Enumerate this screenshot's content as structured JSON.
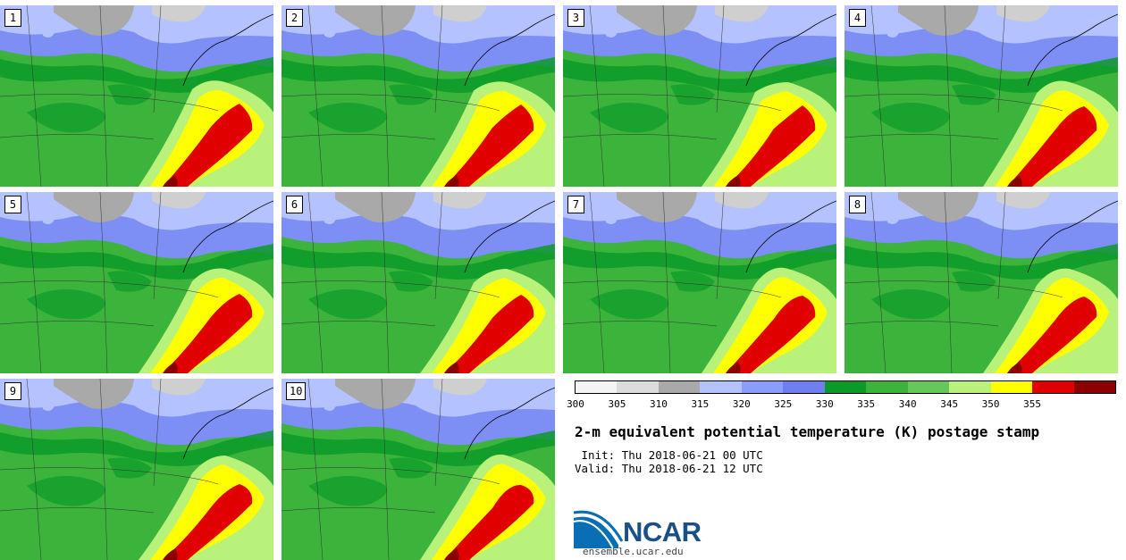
{
  "panels": [
    {
      "member": "1"
    },
    {
      "member": "2"
    },
    {
      "member": "3"
    },
    {
      "member": "4"
    },
    {
      "member": "5"
    },
    {
      "member": "6"
    },
    {
      "member": "7"
    },
    {
      "member": "8"
    },
    {
      "member": "9"
    },
    {
      "member": "10"
    }
  ],
  "colorbar": {
    "ticks": [
      "300",
      "305",
      "310",
      "315",
      "320",
      "325",
      "330",
      "335",
      "340",
      "345",
      "350",
      "355"
    ],
    "colors": [
      "#f4f4f4",
      "#dcdcdc",
      "#a9a9a9",
      "#b4c3ff",
      "#8a9dfa",
      "#6f7ff0",
      "#0b9a28",
      "#3cb43c",
      "#66c85a",
      "#b8f27a",
      "#ffff00",
      "#e10000",
      "#8b0000"
    ]
  },
  "title": "2-m equivalent potential temperature (K) postage stamp",
  "init_line": " Init: Thu 2018-06-21 00 UTC",
  "valid_line": "Valid: Thu 2018-06-21 12 UTC",
  "logo_text": "NCAR",
  "site": "ensemble.ucar.edu",
  "map_colors": {
    "gray": "#a9a9a9",
    "light_gray": "#cfcfcf",
    "light_blue": "#b4c3ff",
    "blue": "#7d8ef5",
    "dark_green": "#0b9a28",
    "green": "#3cb43c",
    "light_green": "#b8f27a",
    "yellow": "#ffff00",
    "red": "#e10000",
    "dark_red": "#8b0000"
  }
}
